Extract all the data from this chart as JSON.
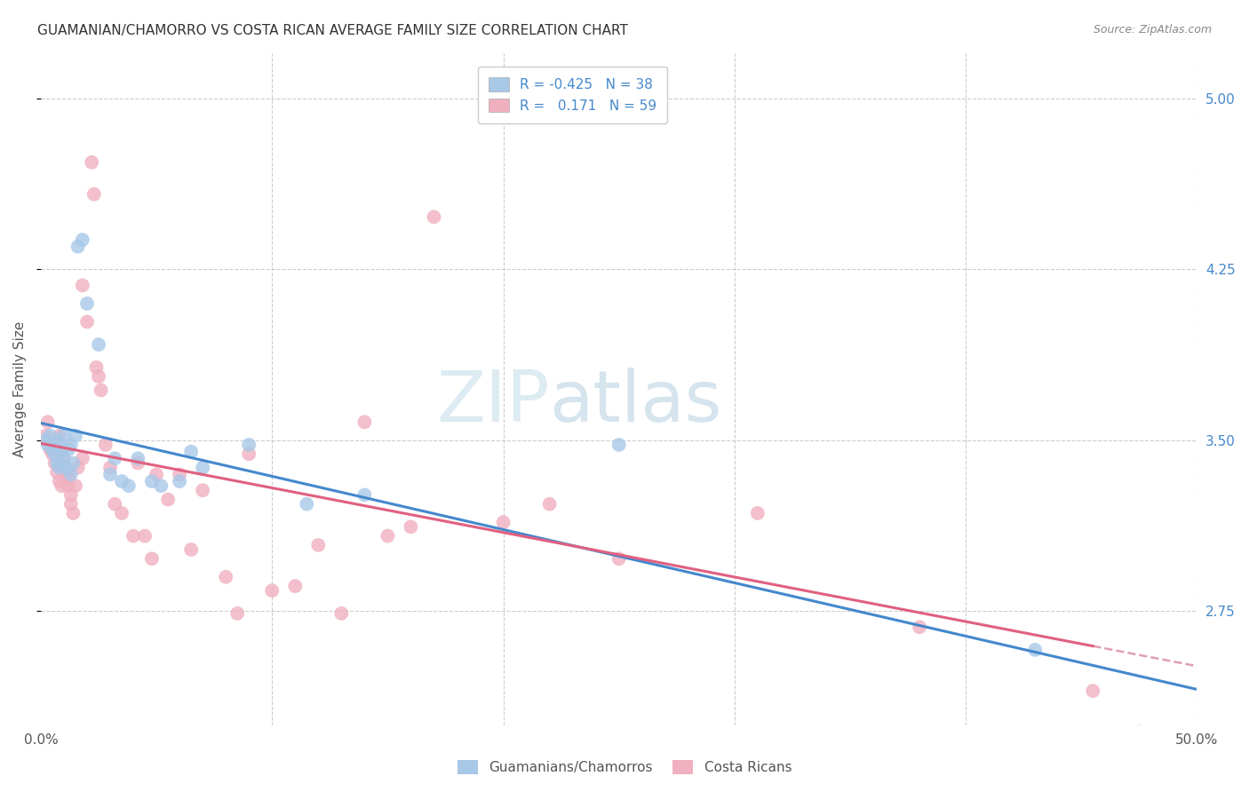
{
  "title": "GUAMANIAN/CHAMORRO VS COSTA RICAN AVERAGE FAMILY SIZE CORRELATION CHART",
  "source": "Source: ZipAtlas.com",
  "ylabel": "Average Family Size",
  "xlim": [
    0.0,
    0.5
  ],
  "ylim": [
    2.25,
    5.2
  ],
  "yticks": [
    2.75,
    3.5,
    4.25,
    5.0
  ],
  "yticklabels": [
    "2.75",
    "3.50",
    "4.25",
    "5.00"
  ],
  "xticks": [
    0.0,
    0.1,
    0.2,
    0.3,
    0.4,
    0.5
  ],
  "xticklabels": [
    "0.0%",
    "",
    "",
    "",
    "",
    "50.0%"
  ],
  "background_color": "#ffffff",
  "grid_color": "#cccccc",
  "legend_r_blue": "-0.425",
  "legend_n_blue": "38",
  "legend_r_pink": "0.171",
  "legend_n_pink": "59",
  "blue_color": "#a8c8e8",
  "pink_color": "#f0b0c0",
  "blue_line_color": "#4488cc",
  "pink_line_color": "#e06080",
  "pink_dash_color": "#e0a0b0",
  "blue_scatter": [
    [
      0.002,
      3.5
    ],
    [
      0.003,
      3.48
    ],
    [
      0.004,
      3.52
    ],
    [
      0.005,
      3.46
    ],
    [
      0.006,
      3.44
    ],
    [
      0.007,
      3.5
    ],
    [
      0.007,
      3.4
    ],
    [
      0.008,
      3.48
    ],
    [
      0.008,
      3.38
    ],
    [
      0.009,
      3.45
    ],
    [
      0.01,
      3.52
    ],
    [
      0.01,
      3.42
    ],
    [
      0.011,
      3.38
    ],
    [
      0.012,
      3.46
    ],
    [
      0.013,
      3.35
    ],
    [
      0.013,
      3.48
    ],
    [
      0.014,
      3.4
    ],
    [
      0.015,
      3.52
    ],
    [
      0.016,
      4.35
    ],
    [
      0.018,
      4.38
    ],
    [
      0.02,
      4.1
    ],
    [
      0.025,
      3.92
    ],
    [
      0.03,
      3.35
    ],
    [
      0.032,
      3.42
    ],
    [
      0.035,
      3.32
    ],
    [
      0.038,
      3.3
    ],
    [
      0.042,
      3.42
    ],
    [
      0.048,
      3.32
    ],
    [
      0.052,
      3.3
    ],
    [
      0.06,
      3.32
    ],
    [
      0.065,
      3.45
    ],
    [
      0.07,
      3.38
    ],
    [
      0.09,
      3.48
    ],
    [
      0.115,
      3.22
    ],
    [
      0.14,
      3.26
    ],
    [
      0.25,
      3.48
    ],
    [
      0.43,
      2.58
    ],
    [
      0.475,
      2.22
    ]
  ],
  "pink_scatter": [
    [
      0.002,
      3.52
    ],
    [
      0.003,
      3.58
    ],
    [
      0.004,
      3.46
    ],
    [
      0.005,
      3.44
    ],
    [
      0.006,
      3.4
    ],
    [
      0.007,
      3.36
    ],
    [
      0.007,
      3.46
    ],
    [
      0.008,
      3.52
    ],
    [
      0.008,
      3.32
    ],
    [
      0.009,
      3.3
    ],
    [
      0.009,
      3.44
    ],
    [
      0.01,
      3.42
    ],
    [
      0.01,
      3.38
    ],
    [
      0.011,
      3.36
    ],
    [
      0.012,
      3.34
    ],
    [
      0.012,
      3.3
    ],
    [
      0.013,
      3.26
    ],
    [
      0.013,
      3.22
    ],
    [
      0.014,
      3.18
    ],
    [
      0.015,
      3.3
    ],
    [
      0.016,
      3.38
    ],
    [
      0.018,
      3.42
    ],
    [
      0.018,
      4.18
    ],
    [
      0.02,
      4.02
    ],
    [
      0.022,
      4.72
    ],
    [
      0.023,
      4.58
    ],
    [
      0.024,
      3.82
    ],
    [
      0.025,
      3.78
    ],
    [
      0.026,
      3.72
    ],
    [
      0.028,
      3.48
    ],
    [
      0.03,
      3.38
    ],
    [
      0.032,
      3.22
    ],
    [
      0.035,
      3.18
    ],
    [
      0.04,
      3.08
    ],
    [
      0.042,
      3.4
    ],
    [
      0.045,
      3.08
    ],
    [
      0.048,
      2.98
    ],
    [
      0.05,
      3.35
    ],
    [
      0.055,
      3.24
    ],
    [
      0.06,
      3.35
    ],
    [
      0.065,
      3.02
    ],
    [
      0.07,
      3.28
    ],
    [
      0.08,
      2.9
    ],
    [
      0.085,
      2.74
    ],
    [
      0.09,
      3.44
    ],
    [
      0.1,
      2.84
    ],
    [
      0.11,
      2.86
    ],
    [
      0.12,
      3.04
    ],
    [
      0.13,
      2.74
    ],
    [
      0.14,
      3.58
    ],
    [
      0.15,
      3.08
    ],
    [
      0.16,
      3.12
    ],
    [
      0.17,
      4.48
    ],
    [
      0.2,
      3.14
    ],
    [
      0.22,
      3.22
    ],
    [
      0.25,
      2.98
    ],
    [
      0.31,
      3.18
    ],
    [
      0.38,
      2.68
    ],
    [
      0.455,
      2.4
    ]
  ],
  "title_fontsize": 11,
  "axis_label_fontsize": 11,
  "tick_fontsize": 11,
  "source_fontsize": 9,
  "legend_fontsize": 11,
  "watermark_zip": "ZIP",
  "watermark_atlas": "atlas"
}
